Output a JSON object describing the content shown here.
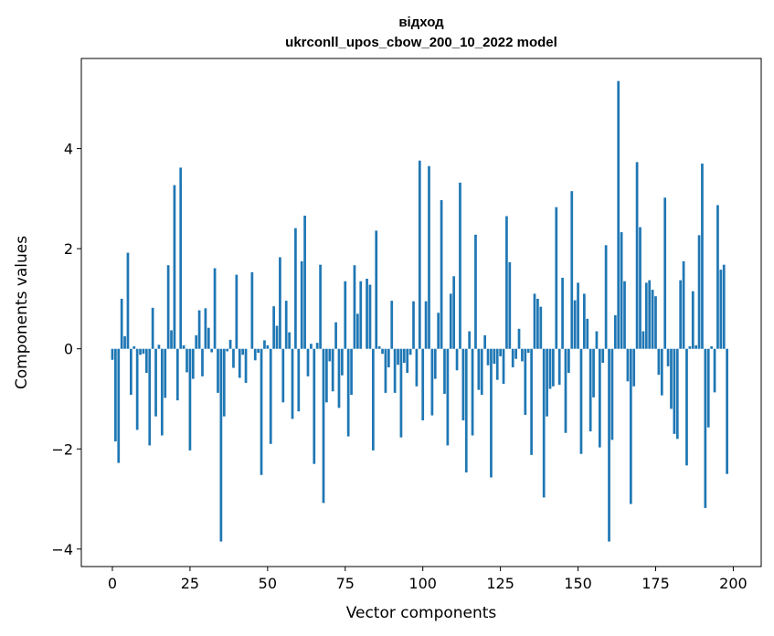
{
  "chart_data": {
    "type": "bar",
    "title": "відход",
    "subtitle": "ukrconll_upos_cbow_200_10_2022 model",
    "xlabel": "Vector components",
    "ylabel": "Components values",
    "xlim": [
      -10,
      209
    ],
    "ylim": [
      -4.35,
      5.8
    ],
    "xticks": [
      0,
      25,
      50,
      75,
      100,
      125,
      150,
      175,
      200
    ],
    "yticks": [
      -4,
      -2,
      0,
      2,
      4
    ],
    "ytick_labels": [
      "−4",
      "−2",
      "0",
      "2",
      "4"
    ],
    "bar_width": 0.8,
    "grid": false,
    "series": [
      {
        "name": "відход",
        "color": "#1f77b4",
        "values": [
          -0.22,
          -1.85,
          -2.28,
          1.0,
          0.25,
          1.92,
          -0.92,
          0.05,
          -1.62,
          -0.12,
          -0.1,
          -0.48,
          -1.93,
          0.82,
          -1.35,
          0.08,
          -1.73,
          -0.98,
          1.67,
          0.37,
          3.27,
          -1.03,
          3.62,
          0.07,
          -0.47,
          -2.03,
          -0.6,
          0.27,
          0.77,
          -0.55,
          0.81,
          0.42,
          -0.07,
          1.61,
          -0.88,
          -3.85,
          -1.35,
          -0.05,
          0.18,
          -0.38,
          1.48,
          -0.58,
          -0.12,
          -0.68,
          0.0,
          1.53,
          -0.23,
          -0.08,
          -2.52,
          0.17,
          0.07,
          -1.9,
          0.85,
          0.46,
          1.83,
          -1.07,
          0.96,
          0.33,
          -1.4,
          2.41,
          -1.25,
          1.75,
          2.66,
          -0.55,
          0.1,
          -2.3,
          0.12,
          1.68,
          -3.08,
          -1.07,
          -0.25,
          -0.85,
          0.53,
          -1.18,
          -0.53,
          1.35,
          -1.75,
          -0.92,
          1.67,
          0.7,
          1.35,
          0.0,
          1.4,
          1.28,
          -2.03,
          2.36,
          0.05,
          -0.1,
          -0.88,
          -0.37,
          0.96,
          -0.88,
          -0.32,
          -1.77,
          -0.28,
          -0.48,
          -0.12,
          0.95,
          -0.75,
          3.76,
          -1.43,
          0.95,
          3.65,
          -1.33,
          -0.6,
          0.72,
          2.97,
          -0.9,
          -1.93,
          1.1,
          1.45,
          -0.43,
          3.32,
          -1.43,
          -2.47,
          0.35,
          -1.73,
          2.28,
          -0.82,
          -0.92,
          0.27,
          -0.33,
          -2.57,
          -0.3,
          -0.62,
          -0.15,
          -0.7,
          2.65,
          1.73,
          -0.37,
          -0.2,
          0.4,
          -0.25,
          -1.32,
          -0.08,
          -2.12,
          1.1,
          1.0,
          0.84,
          -2.97,
          -1.35,
          -0.8,
          -0.75,
          2.83,
          -0.72,
          1.42,
          -1.68,
          -0.48,
          3.15,
          0.97,
          1.32,
          -2.1,
          1.1,
          0.6,
          -1.65,
          -0.97,
          0.35,
          -1.97,
          -0.28,
          2.07,
          -3.85,
          -1.82,
          0.67,
          5.35,
          2.33,
          1.35,
          -0.65,
          -3.1,
          -0.75,
          3.73,
          2.43,
          0.35,
          1.32,
          1.37,
          1.18,
          1.05,
          -0.52,
          -0.93,
          3.02,
          -0.35,
          -1.2,
          -1.7,
          -1.8,
          1.37,
          1.75,
          -2.33,
          0.05,
          1.15,
          0.07,
          2.27,
          3.7,
          -3.18,
          -1.57,
          0.05,
          -0.87,
          2.87,
          1.58,
          1.68,
          -2.5
        ]
      }
    ]
  }
}
